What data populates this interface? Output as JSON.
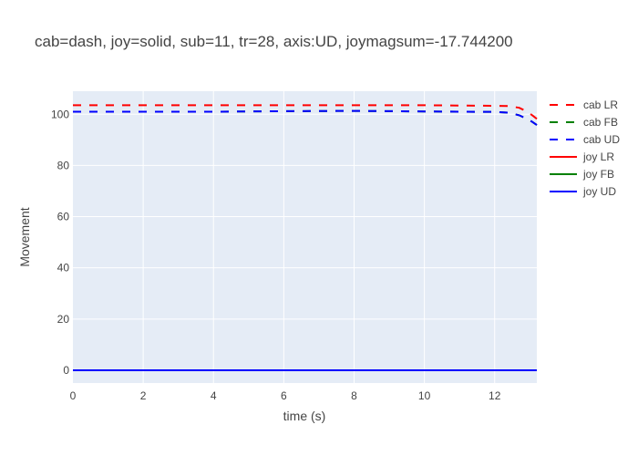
{
  "chart_data": {
    "type": "line",
    "title": "cab=dash, joy=solid, sub=11, tr=28, axis:UD, joymagsum=-17.744200",
    "xlabel": "time (s)",
    "ylabel": "Movement",
    "xlim": [
      0,
      13.2
    ],
    "ylim": [
      -5,
      109
    ],
    "xticks": [
      0,
      2,
      4,
      6,
      8,
      10,
      12
    ],
    "yticks": [
      0,
      20,
      40,
      60,
      80,
      100
    ],
    "grid": true,
    "legend_position": "right",
    "colors": {
      "background": "#e5ecf6",
      "grid": "#ffffff",
      "red": "#ff0000",
      "green": "#008000",
      "blue": "#0000ff"
    },
    "series": [
      {
        "name": "cab LR",
        "style": "dash",
        "color": "#ff0000",
        "x": [
          0,
          2,
          4,
          6,
          8,
          10,
          11,
          12,
          12.4,
          12.7,
          12.9,
          13.05,
          13.2
        ],
        "y": [
          103.5,
          103.5,
          103.5,
          103.5,
          103.5,
          103.5,
          103.4,
          103.3,
          103.2,
          102.5,
          101.2,
          99.8,
          98.2
        ]
      },
      {
        "name": "cab FB",
        "style": "dash",
        "color": "#008000",
        "x": [
          0,
          2,
          4,
          6,
          8,
          10,
          11,
          12,
          12.4,
          12.7,
          12.9,
          13.05,
          13.2
        ],
        "y": [
          101,
          101,
          101,
          101.2,
          101.3,
          101.1,
          101,
          100.9,
          100.6,
          99.6,
          98.3,
          97.2,
          95.8
        ]
      },
      {
        "name": "cab UD",
        "style": "dash",
        "color": "#0000ff",
        "x": [
          0,
          2,
          4,
          6,
          8,
          10,
          11,
          12,
          12.4,
          12.7,
          12.9,
          13.05,
          13.2
        ],
        "y": [
          101,
          101,
          101,
          101.2,
          101.3,
          101.1,
          101,
          100.9,
          100.6,
          99.6,
          98.3,
          97.2,
          95.8
        ]
      },
      {
        "name": "joy LR",
        "style": "solid",
        "color": "#ff0000",
        "x": [
          0,
          13.2
        ],
        "y": [
          0,
          0
        ]
      },
      {
        "name": "joy FB",
        "style": "solid",
        "color": "#008000",
        "x": [
          0,
          13.2
        ],
        "y": [
          0,
          0
        ]
      },
      {
        "name": "joy UD",
        "style": "solid",
        "color": "#0000ff",
        "x": [
          0,
          13.2
        ],
        "y": [
          0,
          0
        ]
      }
    ]
  }
}
